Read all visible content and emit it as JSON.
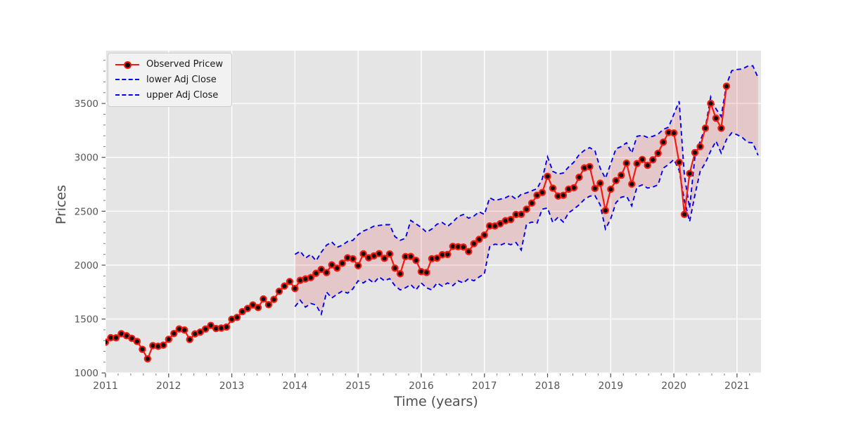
{
  "figure": {
    "background": "#ffffff",
    "plot_background": "#e5e5e5",
    "grid_color": "#ffffff"
  },
  "legend": {
    "entries": [
      {
        "label": "Observed Pricew",
        "sample": "red-line-black-marker",
        "color": "#f41a10"
      },
      {
        "label": "lower Adj Close",
        "sample": "blue-dashed-line",
        "color": "#0000f0"
      },
      {
        "label": "upper Adj Close",
        "sample": "blue-dashed-line",
        "color": "#0000f0"
      }
    ]
  },
  "chart_data": {
    "type": "line",
    "title": "",
    "xlabel": "Time (years)",
    "ylabel": "Prices",
    "grid": true,
    "legend_position": "upper left",
    "xlim": [
      2011.0,
      2021.38
    ],
    "ylim": [
      995,
      3990
    ],
    "x_ticks": [
      2011,
      2012,
      2013,
      2014,
      2015,
      2016,
      2017,
      2018,
      2019,
      2020,
      2021
    ],
    "x_tick_labels": [
      "2011",
      "2012",
      "2013",
      "2014",
      "2015",
      "2016",
      "2017",
      "2018",
      "2019",
      "2020",
      "2021"
    ],
    "y_ticks": [
      1000,
      1500,
      2000,
      2500,
      3000,
      3500
    ],
    "y_tick_labels": [
      "1000",
      "1500",
      "2000",
      "2500",
      "3000",
      "3500"
    ],
    "colors": {
      "observed_line": "#f41a10",
      "marker_face": "#0d0d0d",
      "marker_edge": "#f41a10",
      "bound_lines": "#0000f0",
      "band_fill": "rgba(223,32,38,0.15)",
      "tick_text": "#555555"
    },
    "series": [
      {
        "name": "Observed Pricew",
        "style": "solid-markers",
        "start_month": "2011-01",
        "start_index": 0,
        "values": [
          1286,
          1327,
          1326,
          1364,
          1345,
          1321,
          1292,
          1219,
          1131,
          1253,
          1247,
          1258,
          1312,
          1366,
          1408,
          1398,
          1310,
          1362,
          1379,
          1407,
          1441,
          1412,
          1416,
          1426,
          1498,
          1515,
          1569,
          1598,
          1631,
          1606,
          1686,
          1633,
          1682,
          1757,
          1806,
          1848,
          1783,
          1859,
          1872,
          1884,
          1924,
          1960,
          1931,
          2003,
          1972,
          2018,
          2068,
          2059,
          1995,
          2105,
          2068,
          2086,
          2107,
          2063,
          2104,
          1972,
          1920,
          2079,
          2080,
          2044,
          1940,
          1932,
          2060,
          2065,
          2097,
          2099,
          2174,
          2171,
          2168,
          2126,
          2199,
          2239,
          2279,
          2364,
          2363,
          2384,
          2412,
          2423,
          2470,
          2472,
          2519,
          2575,
          2648,
          2674,
          2824,
          2714,
          2641,
          2648,
          2705,
          2718,
          2816,
          2902,
          2914,
          2712,
          2760,
          2507,
          2704,
          2784,
          2834,
          2946,
          2752,
          2942,
          2980,
          2926,
          2977,
          3038,
          3141,
          3231,
          3226,
          2954,
          2471,
          2850,
          3044,
          3100,
          3271,
          3500,
          3363,
          3270,
          3660
        ]
      },
      {
        "name": "lower Adj Close",
        "style": "dashed",
        "start_month": "2014-01",
        "start_index": 36,
        "values": [
          1615,
          1675,
          1610,
          1645,
          1630,
          1545,
          1750,
          1695,
          1730,
          1760,
          1740,
          1780,
          1855,
          1835,
          1870,
          1835,
          1890,
          1855,
          1875,
          1810,
          1770,
          1790,
          1820,
          1770,
          1835,
          1790,
          1770,
          1835,
          1805,
          1835,
          1810,
          1855,
          1835,
          1875,
          1855,
          1890,
          1920,
          2170,
          2195,
          2185,
          2205,
          2190,
          2210,
          2140,
          2380,
          2400,
          2390,
          2520,
          2530,
          2395,
          2445,
          2400,
          2485,
          2520,
          2560,
          2610,
          2640,
          2645,
          2560,
          2335,
          2430,
          2580,
          2630,
          2640,
          2550,
          2725,
          2745,
          2715,
          2725,
          2745,
          2900,
          2935,
          2980,
          2880,
          2600,
          2404,
          2650,
          2870,
          2950,
          3060,
          3150,
          3040,
          3165,
          3228,
          3210,
          3185,
          3140,
          3135,
          3020
        ]
      },
      {
        "name": "upper Adj Close",
        "style": "dashed",
        "start_month": "2014-01",
        "start_index": 36,
        "values": [
          2100,
          2130,
          2065,
          2100,
          2040,
          2120,
          2185,
          2215,
          2165,
          2185,
          2220,
          2230,
          2283,
          2316,
          2336,
          2362,
          2368,
          2375,
          2375,
          2265,
          2230,
          2250,
          2415,
          2382,
          2350,
          2305,
          2335,
          2380,
          2395,
          2360,
          2400,
          2450,
          2470,
          2435,
          2455,
          2495,
          2470,
          2625,
          2600,
          2612,
          2625,
          2650,
          2612,
          2658,
          2670,
          2690,
          2710,
          2800,
          3005,
          2870,
          2845,
          2855,
          2910,
          2955,
          3025,
          3065,
          3090,
          3060,
          2900,
          2805,
          2940,
          3080,
          3100,
          3135,
          3040,
          3195,
          3205,
          3185,
          3195,
          3215,
          3260,
          3280,
          3400,
          3520,
          2830,
          2530,
          3005,
          3150,
          3280,
          3560,
          3450,
          3380,
          3675,
          3805,
          3815,
          3820,
          3845,
          3850,
          3740
        ]
      }
    ],
    "band": {
      "between": [
        "lower Adj Close",
        "upper Adj Close"
      ],
      "fill": "rgba(223,32,38,0.15)"
    }
  }
}
